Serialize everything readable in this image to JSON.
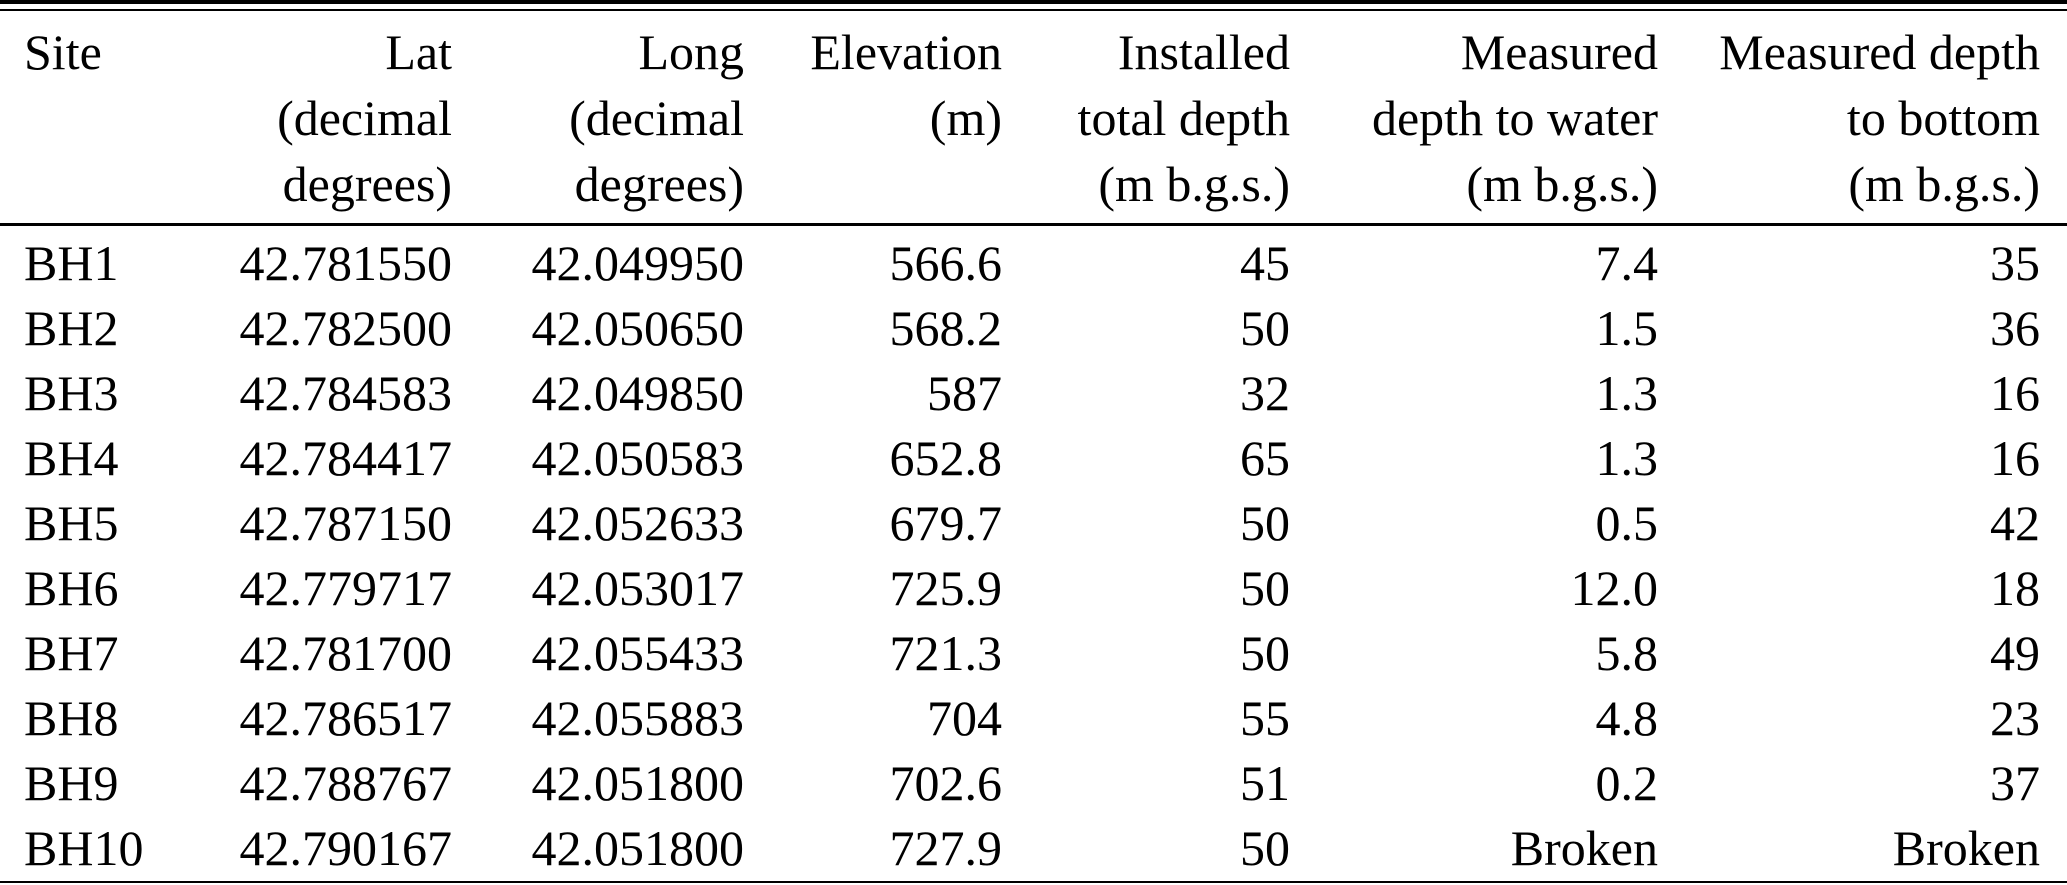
{
  "colors": {
    "background": "#ffffff",
    "text": "#000000",
    "rule": "#000000"
  },
  "table": {
    "headers": [
      {
        "name": "site",
        "align": "left",
        "lines": [
          "Site"
        ]
      },
      {
        "name": "lat",
        "align": "right",
        "lines": [
          "Lat",
          "(decimal",
          "degrees)"
        ]
      },
      {
        "name": "long",
        "align": "right",
        "lines": [
          "Long",
          "(decimal",
          "degrees)"
        ]
      },
      {
        "name": "elevation",
        "align": "right",
        "lines": [
          "Elevation",
          "(m)"
        ]
      },
      {
        "name": "installed-depth",
        "align": "right",
        "lines": [
          "Installed",
          "total depth",
          "(m b.g.s.)"
        ]
      },
      {
        "name": "depth-to-water",
        "align": "right",
        "lines": [
          "Measured",
          "depth to water",
          "(m b.g.s.)"
        ]
      },
      {
        "name": "depth-to-bottom",
        "align": "right",
        "lines": [
          "Measured depth",
          "to bottom",
          "(m b.g.s.)"
        ]
      }
    ],
    "rows": [
      [
        "BH1",
        "42.781550",
        "42.049950",
        "566.6",
        "45",
        "7.4",
        "35"
      ],
      [
        "BH2",
        "42.782500",
        "42.050650",
        "568.2",
        "50",
        "1.5",
        "36"
      ],
      [
        "BH3",
        "42.784583",
        "42.049850",
        "587",
        "32",
        "1.3",
        "16"
      ],
      [
        "BH4",
        "42.784417",
        "42.050583",
        "652.8",
        "65",
        "1.3",
        "16"
      ],
      [
        "BH5",
        "42.787150",
        "42.052633",
        "679.7",
        "50",
        "0.5",
        "42"
      ],
      [
        "BH6",
        "42.779717",
        "42.053017",
        "725.9",
        "50",
        "12.0",
        "18"
      ],
      [
        "BH7",
        "42.781700",
        "42.055433",
        "721.3",
        "50",
        "5.8",
        "49"
      ],
      [
        "BH8",
        "42.786517",
        "42.055883",
        "704",
        "55",
        "4.8",
        "23"
      ],
      [
        "BH9",
        "42.788767",
        "42.051800",
        "702.6",
        "51",
        "0.2",
        "37"
      ],
      [
        "BH10",
        "42.790167",
        "42.051800",
        "727.9",
        "50",
        "Broken",
        "Broken"
      ]
    ]
  }
}
